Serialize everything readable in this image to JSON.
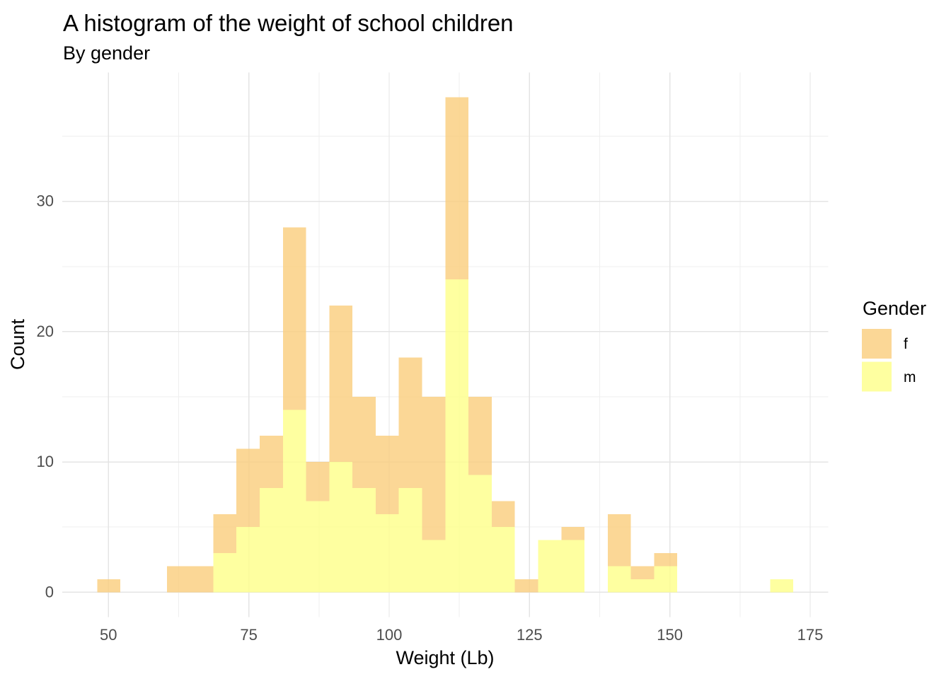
{
  "title": "A histogram of the weight of school children",
  "subtitle": "By gender",
  "chart_data": {
    "type": "bar",
    "subtype": "stacked-histogram",
    "title": "A histogram of the weight of school children",
    "subtitle": "By gender",
    "xlabel": "Weight (Lb)",
    "ylabel": "Count",
    "grid": true,
    "legend": {
      "title": "Gender",
      "position": "right",
      "entries": [
        {
          "label": "f",
          "color": "#FACE7F"
        },
        {
          "label": "m",
          "color": "#FEFF8B"
        }
      ]
    },
    "x_ticks": [
      50,
      75,
      100,
      125,
      150,
      175
    ],
    "x_minor_ticks": [
      62.5,
      87.5,
      112.5,
      137.5,
      162.5
    ],
    "y_ticks": [
      0,
      10,
      20,
      30
    ],
    "y_minor_ticks": [
      5,
      15,
      25,
      35
    ],
    "xlim": [
      41.8,
      178.2
    ],
    "ylim": [
      -1.9,
      39.9
    ],
    "bin_edges": [
      48.0,
      52.13,
      56.27,
      60.4,
      64.53,
      68.67,
      72.8,
      76.93,
      81.07,
      85.2,
      89.33,
      93.47,
      97.6,
      101.73,
      105.87,
      110.0,
      114.13,
      118.27,
      122.4,
      126.53,
      130.67,
      134.8,
      138.93,
      143.07,
      147.2,
      151.33,
      155.47,
      159.6,
      163.73,
      167.87,
      172.0
    ],
    "series": [
      {
        "name": "m",
        "stack_order": 0,
        "color": "#FEFF8B",
        "values": [
          0,
          0,
          0,
          0,
          0,
          3,
          5,
          8,
          14,
          7,
          10,
          8,
          6,
          8,
          4,
          24,
          9,
          5,
          0,
          4,
          4,
          0,
          2,
          1,
          2,
          0,
          0,
          0,
          0,
          1
        ]
      },
      {
        "name": "f",
        "stack_order": 1,
        "color": "#FACE7F",
        "values": [
          1,
          0,
          0,
          2,
          2,
          3,
          6,
          4,
          14,
          3,
          12,
          7,
          6,
          10,
          11,
          14,
          6,
          2,
          1,
          0,
          1,
          0,
          4,
          1,
          1,
          0,
          0,
          0,
          0,
          0
        ]
      }
    ],
    "stack_totals": [
      1,
      0,
      0,
      2,
      2,
      6,
      11,
      12,
      28,
      10,
      22,
      15,
      12,
      18,
      15,
      38,
      15,
      7,
      1,
      4,
      5,
      0,
      6,
      2,
      3,
      0,
      0,
      0,
      0,
      1
    ]
  },
  "style": {
    "background": "#FFFFFF",
    "grid_major": "#E4E4E4",
    "grid_minor": "#EFEFEF",
    "tick_label_color": "#4D4D4D",
    "text_color": "#000000",
    "bar_opacity": 0.82
  }
}
